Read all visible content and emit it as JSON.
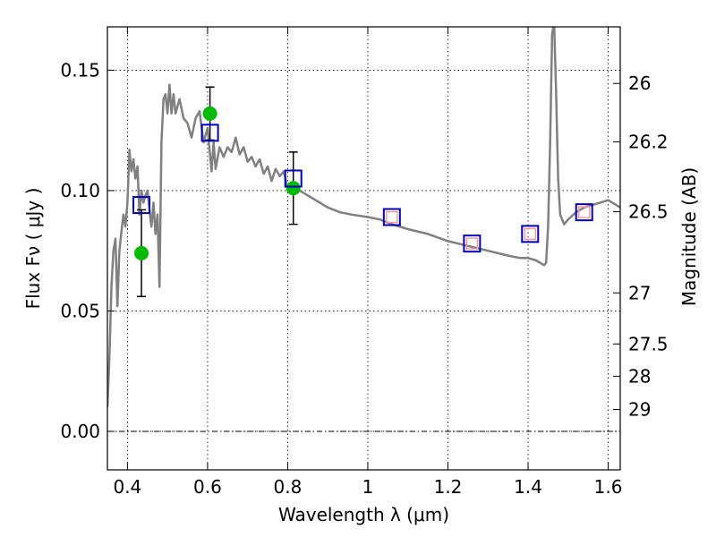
{
  "chart_data": {
    "type": "scatter",
    "xlabel": "Wavelength  λ (μm)",
    "ylabel": "Flux  Fν  ( μJy )",
    "y2label": "Magnitude (AB)",
    "xlim": [
      0.35,
      1.63
    ],
    "ylim": [
      -0.016,
      0.168
    ],
    "grid": true,
    "x_ticks": [
      {
        "value": 0.4,
        "label": "0.4"
      },
      {
        "value": 0.6,
        "label": "0.6"
      },
      {
        "value": 0.8,
        "label": "0.8"
      },
      {
        "value": 1.0,
        "label": "1"
      },
      {
        "value": 1.2,
        "label": "1.2"
      },
      {
        "value": 1.4,
        "label": "1.4"
      },
      {
        "value": 1.6,
        "label": "1.6"
      }
    ],
    "y_ticks": [
      {
        "value": 0.0,
        "label": "0.00"
      },
      {
        "value": 0.05,
        "label": "0.05"
      },
      {
        "value": 0.1,
        "label": "0.10"
      },
      {
        "value": 0.15,
        "label": "0.15"
      }
    ],
    "y2_ticks": [
      {
        "flux": 0.1445,
        "label": "26"
      },
      {
        "flux": 0.1202,
        "label": "26.2"
      },
      {
        "flux": 0.0912,
        "label": "26.5"
      },
      {
        "flux": 0.0575,
        "label": "27"
      },
      {
        "flux": 0.0363,
        "label": "27.5"
      },
      {
        "flux": 0.0229,
        "label": "28"
      },
      {
        "flux": 0.0091,
        "label": "29"
      }
    ],
    "model_spectrum": {
      "color": "#808080",
      "x": [
        0.35,
        0.355,
        0.36,
        0.365,
        0.37,
        0.375,
        0.38,
        0.385,
        0.39,
        0.395,
        0.4,
        0.405,
        0.41,
        0.415,
        0.42,
        0.425,
        0.43,
        0.435,
        0.44,
        0.445,
        0.45,
        0.455,
        0.46,
        0.465,
        0.47,
        0.475,
        0.48,
        0.485,
        0.49,
        0.495,
        0.5,
        0.505,
        0.51,
        0.515,
        0.52,
        0.525,
        0.53,
        0.54,
        0.55,
        0.56,
        0.57,
        0.58,
        0.59,
        0.6,
        0.61,
        0.615,
        0.62,
        0.63,
        0.64,
        0.65,
        0.66,
        0.67,
        0.68,
        0.69,
        0.7,
        0.71,
        0.72,
        0.73,
        0.74,
        0.75,
        0.76,
        0.77,
        0.78,
        0.79,
        0.8,
        0.81,
        0.82,
        0.83,
        0.85,
        0.87,
        0.9,
        0.93,
        0.96,
        1.0,
        1.03,
        1.06,
        1.1,
        1.15,
        1.2,
        1.25,
        1.3,
        1.35,
        1.38,
        1.4,
        1.42,
        1.44,
        1.445,
        1.45,
        1.455,
        1.46,
        1.465,
        1.47,
        1.475,
        1.48,
        1.49,
        1.5,
        1.52,
        1.54,
        1.56,
        1.58,
        1.6,
        1.62,
        1.63
      ],
      "y": [
        0.01,
        0.03,
        0.06,
        0.075,
        0.08,
        0.052,
        0.075,
        0.083,
        0.09,
        0.085,
        0.095,
        0.117,
        0.108,
        0.113,
        0.105,
        0.11,
        0.09,
        0.1,
        0.095,
        0.098,
        0.1,
        0.092,
        0.085,
        0.095,
        0.082,
        0.09,
        0.06,
        0.12,
        0.138,
        0.14,
        0.132,
        0.144,
        0.132,
        0.14,
        0.132,
        0.135,
        0.138,
        0.13,
        0.128,
        0.122,
        0.13,
        0.133,
        0.12,
        0.126,
        0.108,
        0.12,
        0.109,
        0.118,
        0.114,
        0.118,
        0.116,
        0.122,
        0.115,
        0.118,
        0.112,
        0.114,
        0.11,
        0.113,
        0.107,
        0.11,
        0.104,
        0.109,
        0.106,
        0.108,
        0.101,
        0.103,
        0.101,
        0.1,
        0.098,
        0.096,
        0.093,
        0.091,
        0.09,
        0.089,
        0.088,
        0.086,
        0.084,
        0.082,
        0.079,
        0.077,
        0.075,
        0.073,
        0.072,
        0.072,
        0.071,
        0.069,
        0.07,
        0.085,
        0.12,
        0.165,
        0.17,
        0.14,
        0.105,
        0.09,
        0.086,
        0.088,
        0.091,
        0.093,
        0.094,
        0.095,
        0.096,
        0.094,
        0.093
      ]
    },
    "observed": {
      "color": "#00bb00",
      "points": [
        {
          "x": 0.435,
          "y": 0.074,
          "err": 0.018
        },
        {
          "x": 0.606,
          "y": 0.132,
          "err": 0.011
        },
        {
          "x": 0.814,
          "y": 0.101,
          "err": 0.015
        }
      ]
    },
    "model_bands": {
      "color": "#0000cc",
      "points": [
        {
          "x": 0.435,
          "y": 0.094
        },
        {
          "x": 0.606,
          "y": 0.124
        },
        {
          "x": 0.814,
          "y": 0.105
        },
        {
          "x": 1.06,
          "y": 0.089
        },
        {
          "x": 1.26,
          "y": 0.078
        },
        {
          "x": 1.405,
          "y": 0.082
        },
        {
          "x": 1.54,
          "y": 0.091
        }
      ]
    },
    "nir_upper": {
      "color": "#ff9999",
      "points": [
        {
          "x": 1.06,
          "y": 0.089
        },
        {
          "x": 1.26,
          "y": 0.078
        },
        {
          "x": 1.405,
          "y": 0.082
        },
        {
          "x": 1.54,
          "y": 0.091
        }
      ]
    }
  }
}
